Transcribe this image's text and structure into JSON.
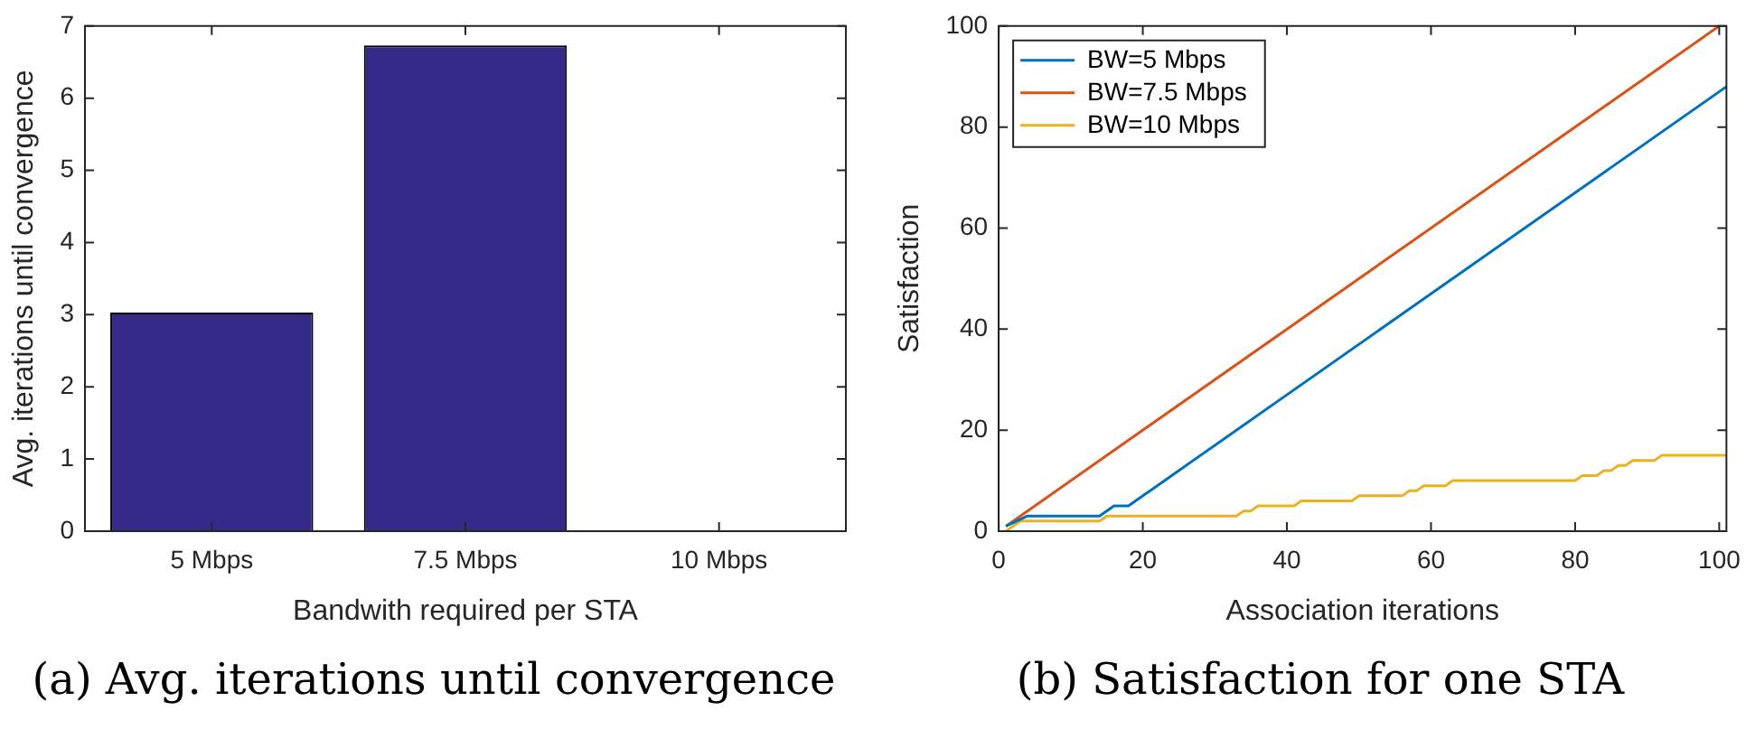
{
  "chart_data": [
    {
      "type": "bar",
      "xlabel": "Bandwith required per STA",
      "ylabel": "Avg. iterations until convergence",
      "categories": [
        "5 Mbps",
        "7.5 Mbps",
        "10 Mbps"
      ],
      "values": [
        3.03,
        6.73,
        0
      ],
      "color": "#352a87",
      "ylim": [
        0,
        7
      ],
      "yticks": [
        0,
        1,
        2,
        3,
        4,
        5,
        6,
        7
      ],
      "grid": false,
      "legend": false,
      "annotations": [
        "(a) Avg. iterations until convergence"
      ]
    },
    {
      "type": "line",
      "xlabel": "Association iterations",
      "ylabel": "Satisfaction",
      "xlim": [
        0,
        101
      ],
      "xticks": [
        0,
        20,
        40,
        60,
        80,
        100
      ],
      "ylim": [
        0,
        100
      ],
      "yticks": [
        0,
        20,
        40,
        60,
        80,
        100
      ],
      "grid": false,
      "legend": "top left",
      "marker": "none",
      "line_style": "solid",
      "annotations": [
        "(b) Satisfaction for one STA"
      ],
      "series": [
        {
          "name": "BW=5 Mbps",
          "color": "#0072bd",
          "x": [
            1,
            4,
            14,
            16,
            18,
            101
          ],
          "values": [
            1,
            3,
            3,
            5,
            5,
            88
          ]
        },
        {
          "name": "BW=7.5 Mbps",
          "color": "#d95319",
          "x": [
            1,
            100
          ],
          "values": [
            1,
            100
          ]
        },
        {
          "name": "BW=10 Mbps",
          "color": "#edb120",
          "x": [
            1,
            3,
            14,
            15,
            33,
            34,
            35,
            36,
            41,
            42,
            49,
            50,
            56,
            57,
            58,
            59,
            62,
            63,
            80,
            81,
            83,
            84,
            85,
            86,
            87,
            88,
            91,
            92,
            101
          ],
          "values": [
            0,
            2,
            2,
            3,
            3,
            4,
            4,
            5,
            5,
            6,
            6,
            7,
            7,
            8,
            8,
            9,
            9,
            10,
            10,
            11,
            11,
            12,
            12,
            13,
            13,
            14,
            14,
            15,
            15
          ]
        }
      ]
    }
  ]
}
